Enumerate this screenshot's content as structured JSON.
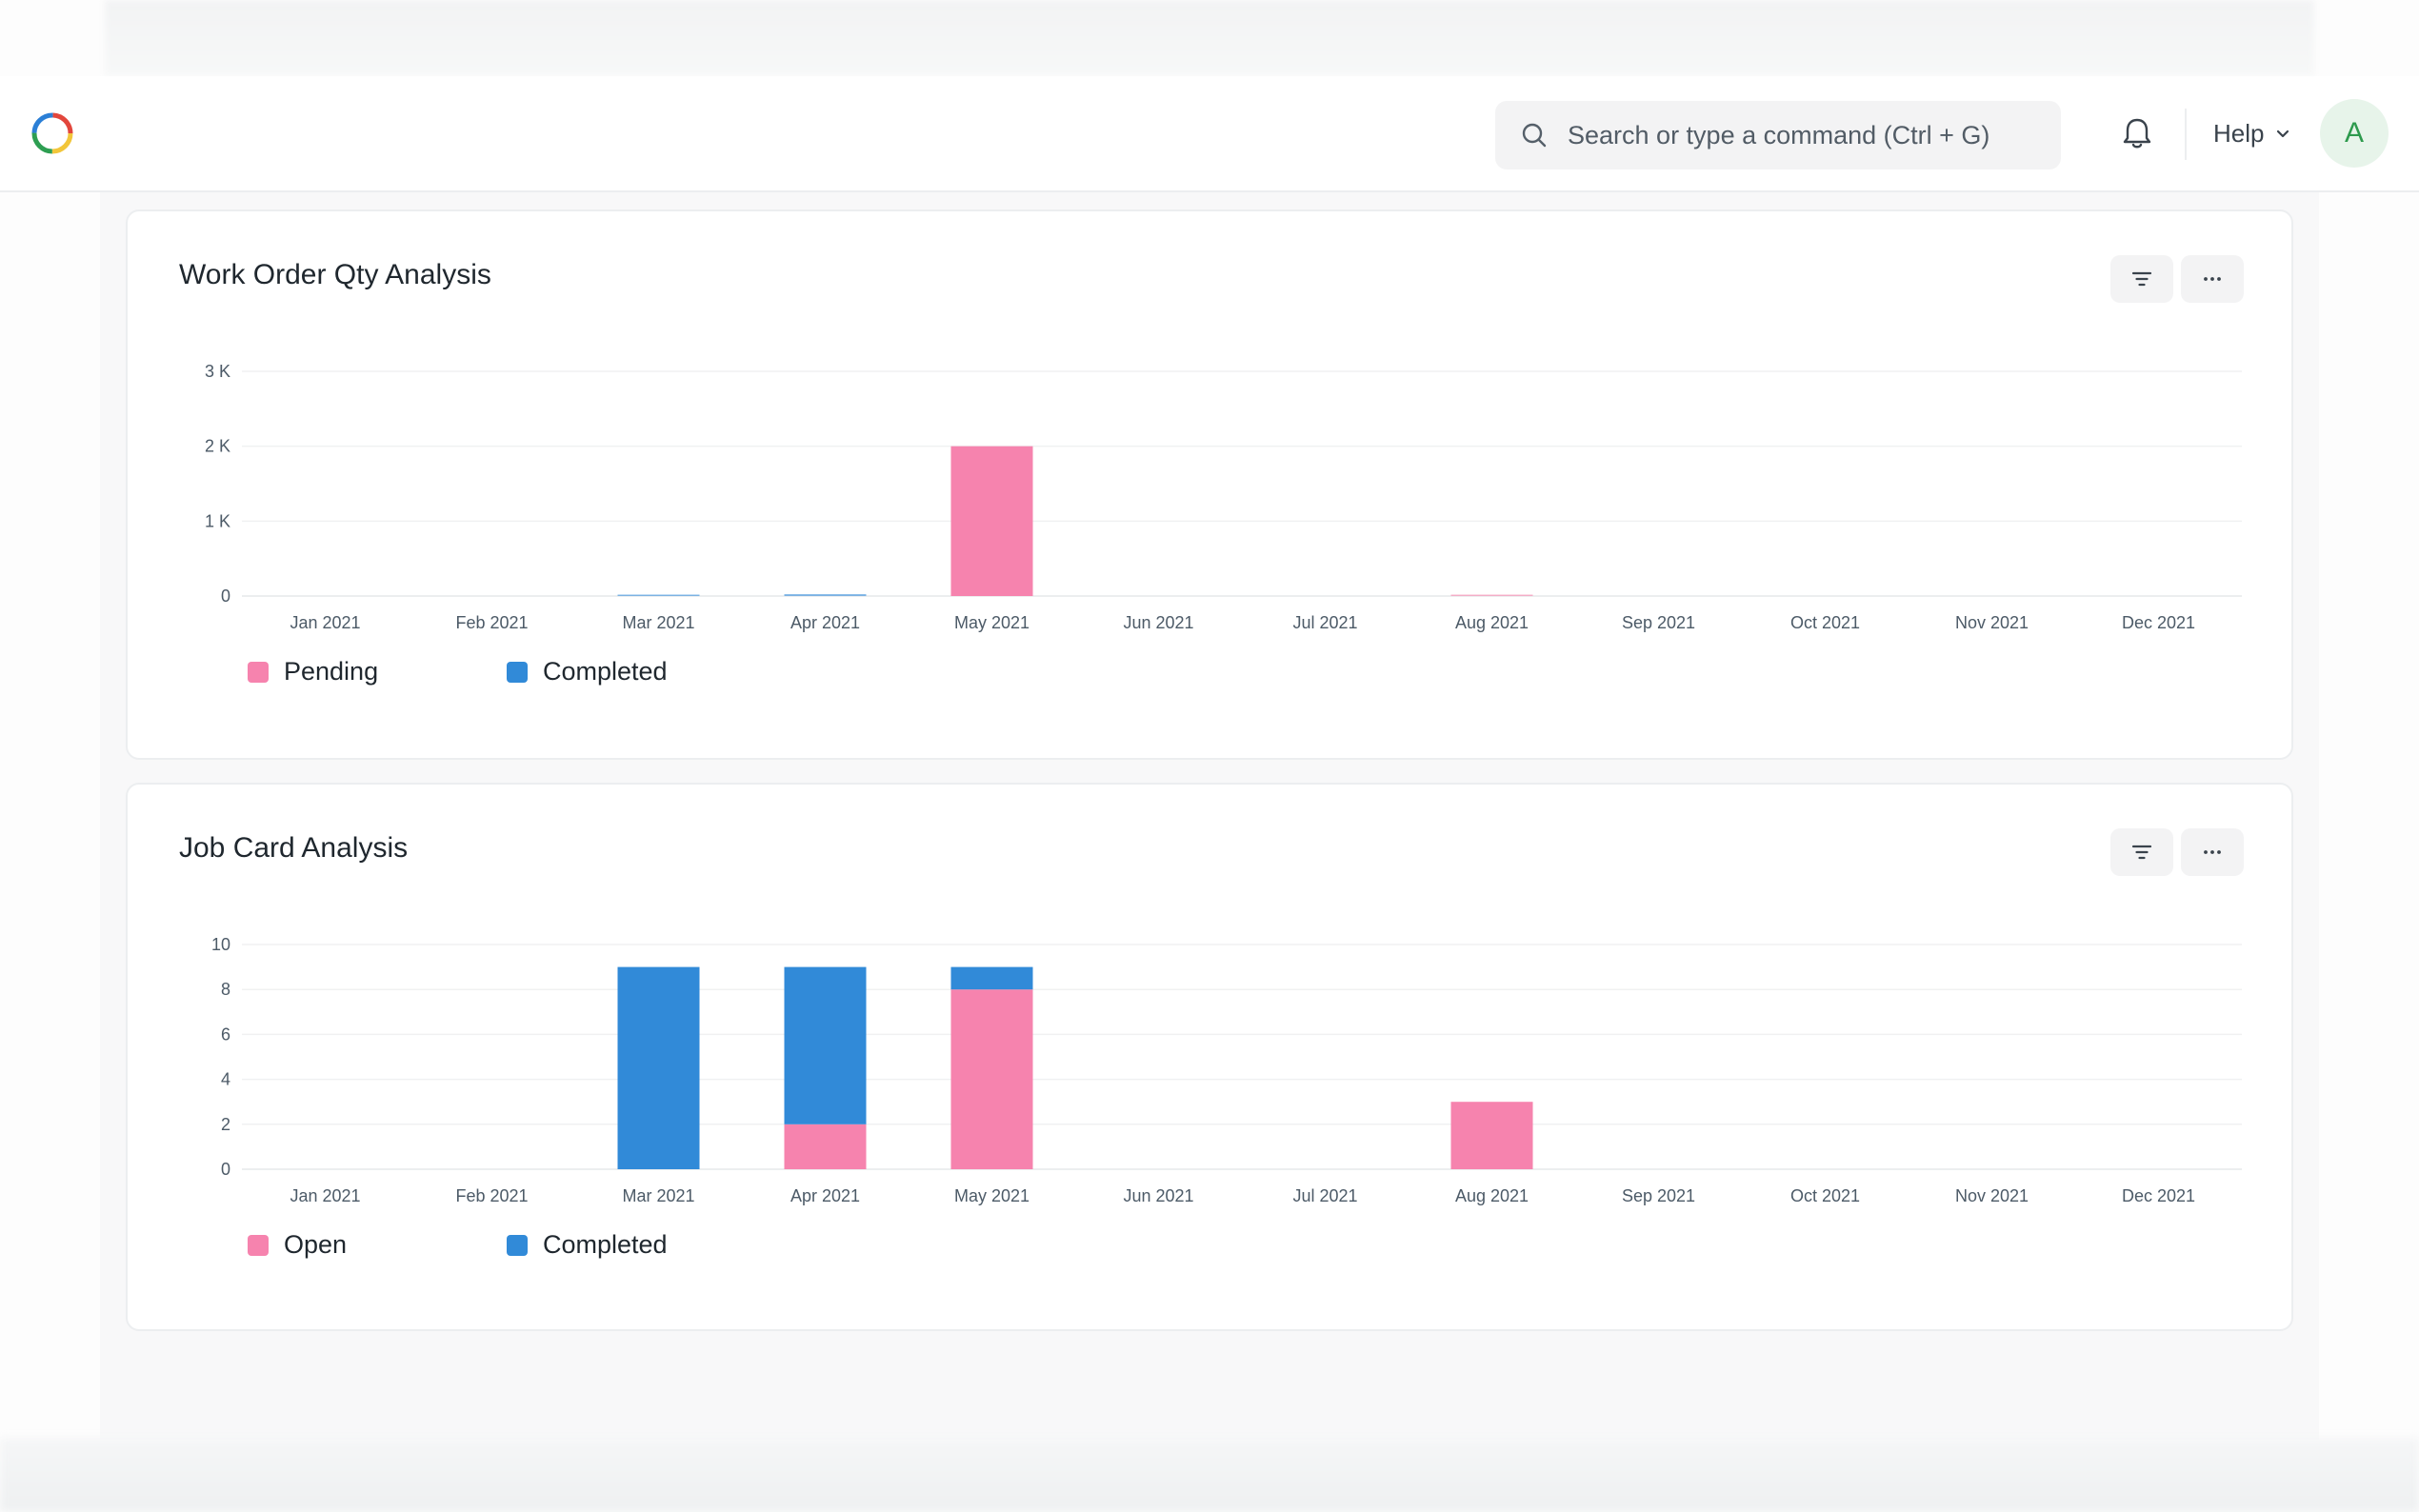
{
  "navbar": {
    "search": {
      "placeholder": "Search or type a command (Ctrl + G)"
    },
    "help_label": "Help",
    "avatar_initial": "A"
  },
  "colors": {
    "pink": "#f683ae",
    "blue": "#318ad8",
    "grid": "#f0f1f2",
    "axis_text": "#4c5a67"
  },
  "cards": [
    {
      "title": "Work Order Qty Analysis",
      "icons": [
        "filter-icon",
        "more-icon"
      ],
      "legend": [
        {
          "label": "Pending",
          "color": "#f683ae"
        },
        {
          "label": "Completed",
          "color": "#318ad8"
        }
      ]
    },
    {
      "title": "Job Card Analysis",
      "icons": [
        "filter-icon",
        "more-icon"
      ],
      "legend": [
        {
          "label": "Open",
          "color": "#f683ae"
        },
        {
          "label": "Completed",
          "color": "#318ad8"
        }
      ]
    }
  ],
  "chart_data": [
    {
      "type": "bar",
      "stacked": true,
      "title": "Work Order Qty Analysis",
      "categories": [
        "Jan 2021",
        "Feb 2021",
        "Mar 2021",
        "Apr 2021",
        "May 2021",
        "Jun 2021",
        "Jul 2021",
        "Aug 2021",
        "Sep 2021",
        "Oct 2021",
        "Nov 2021",
        "Dec 2021"
      ],
      "series": [
        {
          "name": "Pending",
          "color": "#f683ae",
          "values": [
            0,
            0,
            0,
            0,
            2000,
            0,
            0,
            8,
            0,
            0,
            0,
            0
          ]
        },
        {
          "name": "Completed",
          "color": "#318ad8",
          "values": [
            0,
            0,
            10,
            25,
            0,
            0,
            0,
            0,
            0,
            0,
            0,
            0
          ]
        }
      ],
      "yticks": [
        "0",
        "1 K",
        "2 K",
        "3 K"
      ],
      "ylim": [
        0,
        3000
      ],
      "grid": true,
      "legend": "bottom-left"
    },
    {
      "type": "bar",
      "stacked": true,
      "title": "Job Card Analysis",
      "categories": [
        "Jan 2021",
        "Feb 2021",
        "Mar 2021",
        "Apr 2021",
        "May 2021",
        "Jun 2021",
        "Jul 2021",
        "Aug 2021",
        "Sep 2021",
        "Oct 2021",
        "Nov 2021",
        "Dec 2021"
      ],
      "series": [
        {
          "name": "Open",
          "color": "#f683ae",
          "values": [
            0,
            0,
            0,
            2,
            8,
            0,
            0,
            3,
            0,
            0,
            0,
            0
          ]
        },
        {
          "name": "Completed",
          "color": "#318ad8",
          "values": [
            0,
            0,
            9,
            7,
            1,
            0,
            0,
            0,
            0,
            0,
            0,
            0
          ]
        }
      ],
      "yticks": [
        "0",
        "2",
        "4",
        "6",
        "8",
        "10"
      ],
      "ylim": [
        0,
        10
      ],
      "grid": true,
      "legend": "bottom-left"
    }
  ]
}
